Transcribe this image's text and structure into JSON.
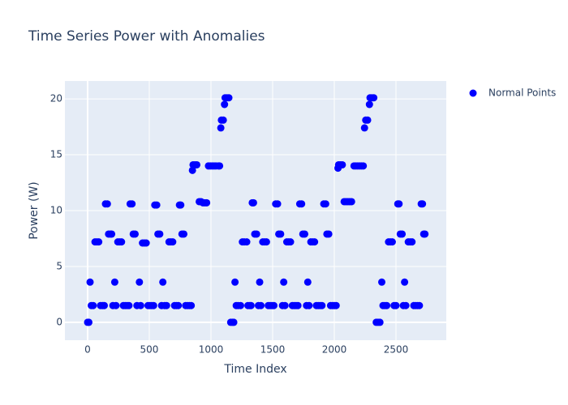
{
  "chart_data": {
    "type": "scatter",
    "title": "Time Series Power with Anomalies",
    "x_label": "Time Index",
    "y_label": "Power (W)",
    "x": [
      0,
      10,
      20,
      30,
      45,
      60,
      75,
      90,
      105,
      120,
      135,
      145,
      160,
      170,
      185,
      195,
      205,
      220,
      230,
      245,
      260,
      275,
      290,
      305,
      320,
      335,
      345,
      360,
      370,
      385,
      400,
      420,
      430,
      445,
      460,
      475,
      490,
      505,
      520,
      535,
      545,
      560,
      570,
      585,
      600,
      610,
      625,
      640,
      660,
      675,
      690,
      705,
      720,
      735,
      745,
      755,
      765,
      780,
      795,
      810,
      825,
      840,
      850,
      855,
      870,
      885,
      905,
      920,
      935,
      950,
      965,
      980,
      995,
      1010,
      1025,
      1040,
      1060,
      1070,
      1080,
      1085,
      1100,
      1110,
      1115,
      1130,
      1145,
      1160,
      1175,
      1185,
      1195,
      1205,
      1220,
      1240,
      1255,
      1270,
      1290,
      1300,
      1315,
      1325,
      1335,
      1345,
      1355,
      1370,
      1385,
      1395,
      1405,
      1420,
      1435,
      1450,
      1465,
      1480,
      1495,
      1510,
      1525,
      1540,
      1550,
      1565,
      1580,
      1590,
      1600,
      1615,
      1630,
      1645,
      1660,
      1675,
      1690,
      1705,
      1720,
      1735,
      1745,
      1760,
      1775,
      1785,
      1795,
      1810,
      1825,
      1840,
      1855,
      1870,
      1885,
      1900,
      1915,
      1930,
      1940,
      1955,
      1970,
      1985,
      2000,
      2015,
      2030,
      2035,
      2050,
      2065,
      2080,
      2095,
      2110,
      2125,
      2140,
      2160,
      2175,
      2190,
      2205,
      2220,
      2235,
      2245,
      2255,
      2270,
      2285,
      2290,
      2305,
      2320,
      2340,
      2355,
      2370,
      2385,
      2395,
      2410,
      2425,
      2440,
      2455,
      2470,
      2485,
      2500,
      2515,
      2525,
      2535,
      2550,
      2560,
      2570,
      2580,
      2600,
      2615,
      2630,
      2645,
      2660,
      2675,
      2690,
      2705,
      2715,
      2725,
      2735
    ],
    "series": [
      {
        "name": "Normal Points",
        "color": "#0000ff",
        "values": [
          0,
          0,
          3.6,
          1.5,
          1.5,
          7.2,
          7.2,
          7.2,
          1.5,
          1.5,
          1.5,
          10.6,
          10.6,
          7.9,
          7.9,
          7.9,
          1.5,
          3.6,
          1.5,
          7.2,
          7.2,
          7.2,
          1.5,
          1.5,
          1.5,
          1.5,
          10.6,
          10.6,
          7.9,
          7.9,
          1.5,
          3.6,
          1.5,
          7.1,
          7.1,
          7.1,
          1.5,
          1.5,
          1.5,
          1.5,
          10.5,
          10.5,
          7.9,
          7.9,
          1.5,
          3.6,
          1.5,
          1.5,
          7.2,
          7.2,
          7.2,
          1.5,
          1.5,
          1.5,
          10.5,
          10.5,
          7.9,
          7.9,
          1.5,
          1.5,
          1.5,
          1.5,
          13.6,
          14.1,
          14.1,
          14.1,
          10.8,
          10.8,
          10.7,
          10.7,
          10.7,
          14.0,
          14.0,
          14.0,
          14.0,
          14.0,
          14.0,
          14.0,
          17.4,
          18.1,
          18.1,
          19.5,
          20.1,
          20.1,
          20.1,
          0,
          0,
          0,
          3.6,
          1.5,
          1.5,
          1.5,
          7.2,
          7.2,
          7.2,
          1.5,
          1.5,
          1.5,
          10.7,
          10.7,
          7.9,
          7.9,
          1.5,
          3.6,
          1.5,
          7.2,
          7.2,
          7.2,
          1.5,
          1.5,
          1.5,
          1.5,
          10.6,
          10.6,
          7.9,
          7.9,
          1.5,
          3.6,
          1.5,
          7.2,
          7.2,
          7.2,
          1.5,
          1.5,
          1.5,
          1.5,
          10.6,
          10.6,
          7.9,
          7.9,
          1.5,
          3.6,
          1.5,
          7.2,
          7.2,
          7.2,
          1.5,
          1.5,
          1.5,
          1.5,
          10.6,
          10.6,
          7.9,
          7.9,
          1.5,
          1.5,
          1.5,
          1.5,
          13.8,
          14.1,
          14.1,
          14.1,
          10.8,
          10.8,
          10.8,
          10.8,
          10.8,
          14.0,
          14.0,
          14.0,
          14.0,
          14.0,
          14.0,
          17.4,
          18.1,
          18.1,
          19.5,
          20.1,
          20.1,
          20.1,
          0,
          0,
          0,
          3.6,
          1.5,
          1.5,
          1.5,
          7.2,
          7.2,
          7.2,
          1.5,
          1.5,
          10.6,
          10.6,
          7.9,
          7.9,
          1.5,
          3.6,
          1.5,
          7.2,
          7.2,
          7.2,
          1.5,
          1.5,
          1.5,
          1.5,
          10.6,
          10.6,
          7.9,
          7.9
        ]
      }
    ],
    "xlim": [
      -184,
      2908
    ],
    "ylim": [
      -1.6,
      21.6
    ],
    "xticks": [
      0,
      500,
      1000,
      1500,
      2000,
      2500
    ],
    "yticks": [
      0,
      5,
      10,
      15,
      20
    ],
    "grid": true,
    "legend": "right"
  }
}
